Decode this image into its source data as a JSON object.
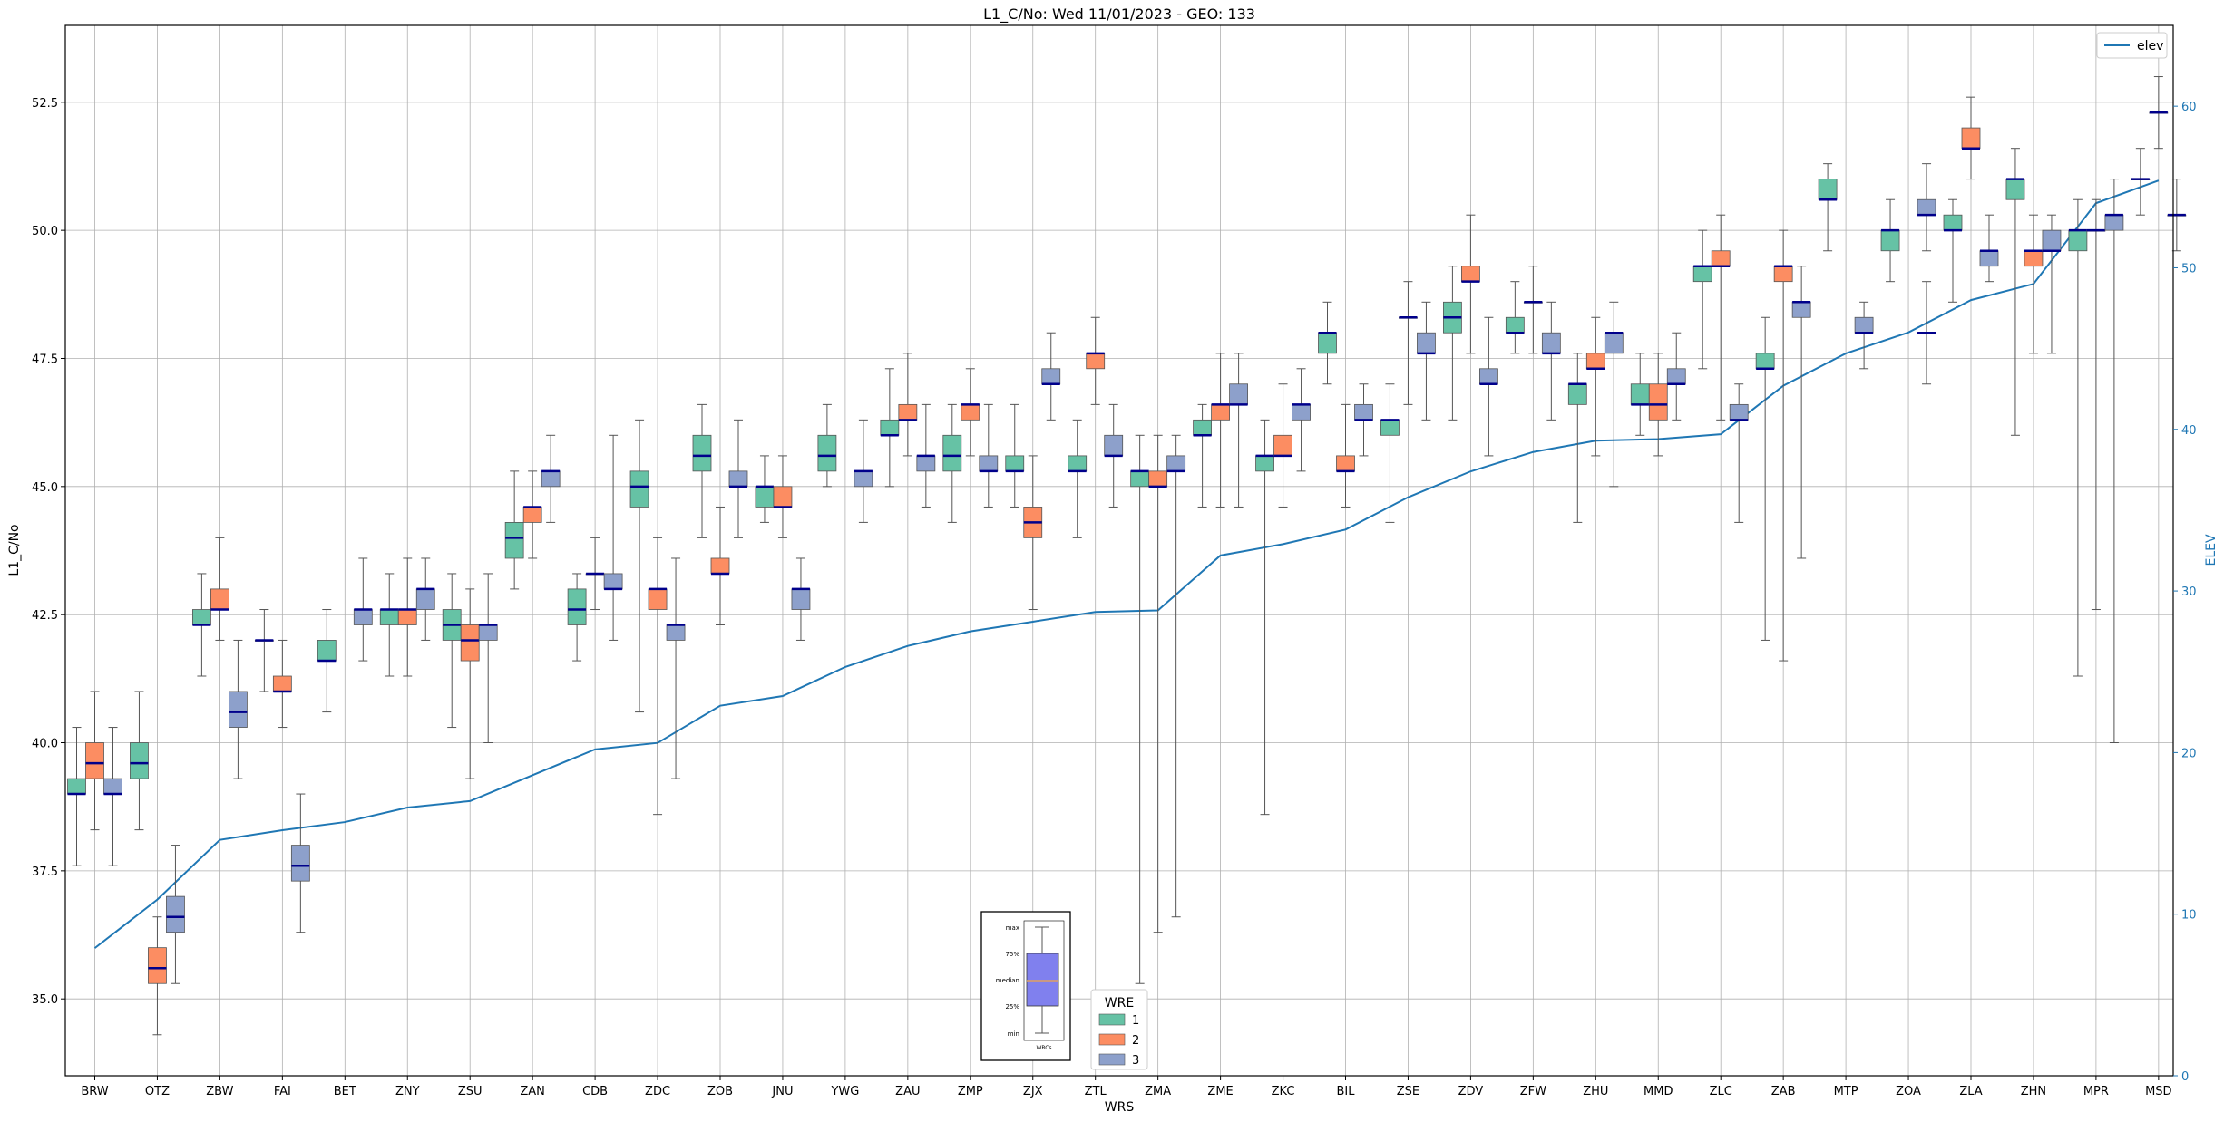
{
  "chart_data": {
    "type": "box",
    "title": "L1_C/No: Wed 11/01/2023 - GEO: 133",
    "xlabel": "WRS",
    "ylabel": "L1_C/No",
    "y2label": "ELEV",
    "ylim": [
      33.5,
      54.0
    ],
    "y2lim": [
      0,
      65
    ],
    "yticks": [
      "35.0",
      "37.5",
      "40.0",
      "42.5",
      "45.0",
      "47.5",
      "50.0",
      "52.5"
    ],
    "y2ticks": [
      "0",
      "10",
      "20",
      "30",
      "40",
      "50",
      "60"
    ],
    "grid": true,
    "colors": {
      "wre1": "#66c2a5",
      "wre2": "#fc8d62",
      "wre3": "#8da0cb",
      "elev": "#1f77b4",
      "median": "#00008b",
      "axis2": "#1f77b4"
    },
    "categories": [
      "BRW",
      "OTZ",
      "ZBW",
      "FAI",
      "BET",
      "ZNY",
      "ZSU",
      "ZAN",
      "CDB",
      "ZDC",
      "ZOB",
      "JNU",
      "YWG",
      "ZAU",
      "ZMP",
      "ZJX",
      "ZTL",
      "ZMA",
      "ZME",
      "ZKC",
      "BIL",
      "ZSE",
      "ZDV",
      "ZFW",
      "ZHU",
      "MMD",
      "ZLC",
      "ZAB",
      "MTP",
      "ZOA",
      "ZLA",
      "ZHN",
      "MPR",
      "MSD"
    ],
    "boxes": [
      {
        "cat": "BRW",
        "wre": 1,
        "stats": [
          37.6,
          39.0,
          39.0,
          39.3,
          40.3
        ]
      },
      {
        "cat": "BRW",
        "wre": 2,
        "stats": [
          38.3,
          39.3,
          39.6,
          40.0,
          41.0
        ]
      },
      {
        "cat": "BRW",
        "wre": 3,
        "stats": [
          37.6,
          39.0,
          39.0,
          39.3,
          40.3
        ]
      },
      {
        "cat": "OTZ",
        "wre": 1,
        "stats": [
          38.3,
          39.3,
          39.6,
          40.0,
          41.0
        ]
      },
      {
        "cat": "OTZ",
        "wre": 2,
        "stats": [
          34.3,
          35.3,
          35.6,
          36.0,
          36.6
        ]
      },
      {
        "cat": "OTZ",
        "wre": 3,
        "stats": [
          35.3,
          36.3,
          36.6,
          37.0,
          38.0
        ]
      },
      {
        "cat": "ZBW",
        "wre": 1,
        "stats": [
          41.3,
          42.3,
          42.3,
          42.6,
          43.3
        ]
      },
      {
        "cat": "ZBW",
        "wre": 2,
        "stats": [
          42.0,
          42.6,
          42.6,
          43.0,
          44.0
        ]
      },
      {
        "cat": "ZBW",
        "wre": 3,
        "stats": [
          39.3,
          40.3,
          40.6,
          41.0,
          42.0
        ]
      },
      {
        "cat": "FAI",
        "wre": 1,
        "stats": [
          41.0,
          42.0,
          42.0,
          42.0,
          42.6
        ]
      },
      {
        "cat": "FAI",
        "wre": 2,
        "stats": [
          40.3,
          41.0,
          41.0,
          41.3,
          42.0
        ]
      },
      {
        "cat": "FAI",
        "wre": 3,
        "stats": [
          36.3,
          37.3,
          37.6,
          38.0,
          39.0
        ]
      },
      {
        "cat": "BET",
        "wre": 1,
        "stats": [
          40.6,
          41.6,
          41.6,
          42.0,
          42.6
        ]
      },
      {
        "cat": "BET",
        "wre": 3,
        "stats": [
          41.6,
          42.3,
          42.6,
          42.6,
          43.6
        ]
      },
      {
        "cat": "ZNY",
        "wre": 1,
        "stats": [
          41.3,
          42.3,
          42.6,
          42.6,
          43.3
        ]
      },
      {
        "cat": "ZNY",
        "wre": 2,
        "stats": [
          41.3,
          42.3,
          42.6,
          42.6,
          43.6
        ]
      },
      {
        "cat": "ZNY",
        "wre": 3,
        "stats": [
          42.0,
          42.6,
          43.0,
          43.0,
          43.6
        ]
      },
      {
        "cat": "ZSU",
        "wre": 1,
        "stats": [
          40.3,
          42.0,
          42.3,
          42.6,
          43.3
        ]
      },
      {
        "cat": "ZSU",
        "wre": 2,
        "stats": [
          39.3,
          41.6,
          42.0,
          42.3,
          43.0
        ]
      },
      {
        "cat": "ZSU",
        "wre": 3,
        "stats": [
          40.0,
          42.0,
          42.3,
          42.3,
          43.3
        ]
      },
      {
        "cat": "ZAN",
        "wre": 1,
        "stats": [
          43.0,
          43.6,
          44.0,
          44.3,
          45.3
        ]
      },
      {
        "cat": "ZAN",
        "wre": 2,
        "stats": [
          43.6,
          44.3,
          44.6,
          44.6,
          45.3
        ]
      },
      {
        "cat": "ZAN",
        "wre": 3,
        "stats": [
          44.3,
          45.0,
          45.3,
          45.3,
          46.0
        ]
      },
      {
        "cat": "CDB",
        "wre": 1,
        "stats": [
          41.6,
          42.3,
          42.6,
          43.0,
          43.3
        ]
      },
      {
        "cat": "CDB",
        "wre": 2,
        "stats": [
          42.6,
          43.3,
          43.3,
          43.3,
          44.0
        ]
      },
      {
        "cat": "CDB",
        "wre": 3,
        "stats": [
          42.0,
          43.0,
          43.0,
          43.3,
          46.0
        ]
      },
      {
        "cat": "ZDC",
        "wre": 1,
        "stats": [
          40.6,
          44.6,
          45.0,
          45.3,
          46.3
        ]
      },
      {
        "cat": "ZDC",
        "wre": 2,
        "stats": [
          38.6,
          42.6,
          43.0,
          43.0,
          44.0
        ]
      },
      {
        "cat": "ZDC",
        "wre": 3,
        "stats": [
          39.3,
          42.0,
          42.3,
          42.3,
          43.6
        ]
      },
      {
        "cat": "ZOB",
        "wre": 1,
        "stats": [
          44.0,
          45.3,
          45.6,
          46.0,
          46.6
        ]
      },
      {
        "cat": "ZOB",
        "wre": 2,
        "stats": [
          42.3,
          43.3,
          43.3,
          43.6,
          44.6
        ]
      },
      {
        "cat": "ZOB",
        "wre": 3,
        "stats": [
          44.0,
          45.0,
          45.0,
          45.3,
          46.3
        ]
      },
      {
        "cat": "JNU",
        "wre": 1,
        "stats": [
          44.3,
          44.6,
          45.0,
          45.0,
          45.6
        ]
      },
      {
        "cat": "JNU",
        "wre": 2,
        "stats": [
          44.0,
          44.6,
          44.6,
          45.0,
          45.6
        ]
      },
      {
        "cat": "JNU",
        "wre": 3,
        "stats": [
          42.0,
          42.6,
          43.0,
          43.0,
          43.6
        ]
      },
      {
        "cat": "YWG",
        "wre": 1,
        "stats": [
          45.0,
          45.3,
          45.6,
          46.0,
          46.6
        ]
      },
      {
        "cat": "YWG",
        "wre": 3,
        "stats": [
          44.3,
          45.0,
          45.3,
          45.3,
          46.3
        ]
      },
      {
        "cat": "ZAU",
        "wre": 1,
        "stats": [
          45.0,
          46.0,
          46.0,
          46.3,
          47.3
        ]
      },
      {
        "cat": "ZAU",
        "wre": 2,
        "stats": [
          45.6,
          46.3,
          46.3,
          46.6,
          47.6
        ]
      },
      {
        "cat": "ZAU",
        "wre": 3,
        "stats": [
          44.6,
          45.3,
          45.6,
          45.6,
          46.6
        ]
      },
      {
        "cat": "ZMP",
        "wre": 1,
        "stats": [
          44.3,
          45.3,
          45.6,
          46.0,
          46.6
        ]
      },
      {
        "cat": "ZMP",
        "wre": 2,
        "stats": [
          45.6,
          46.3,
          46.6,
          46.6,
          47.3
        ]
      },
      {
        "cat": "ZMP",
        "wre": 3,
        "stats": [
          44.6,
          45.3,
          45.3,
          45.6,
          46.6
        ]
      },
      {
        "cat": "ZJX",
        "wre": 1,
        "stats": [
          44.6,
          45.3,
          45.3,
          45.6,
          46.6
        ]
      },
      {
        "cat": "ZJX",
        "wre": 2,
        "stats": [
          42.6,
          44.0,
          44.3,
          44.6,
          45.6
        ]
      },
      {
        "cat": "ZJX",
        "wre": 3,
        "stats": [
          46.3,
          47.0,
          47.0,
          47.3,
          48.0
        ]
      },
      {
        "cat": "ZTL",
        "wre": 1,
        "stats": [
          44.0,
          45.3,
          45.3,
          45.6,
          46.3
        ]
      },
      {
        "cat": "ZTL",
        "wre": 2,
        "stats": [
          46.6,
          47.3,
          47.6,
          47.6,
          48.3
        ]
      },
      {
        "cat": "ZTL",
        "wre": 3,
        "stats": [
          44.6,
          45.6,
          45.6,
          46.0,
          46.6
        ]
      },
      {
        "cat": "ZMA",
        "wre": 1,
        "stats": [
          35.3,
          45.0,
          45.3,
          45.3,
          46.0
        ]
      },
      {
        "cat": "ZMA",
        "wre": 2,
        "stats": [
          36.3,
          45.0,
          45.0,
          45.3,
          46.0
        ]
      },
      {
        "cat": "ZMA",
        "wre": 3,
        "stats": [
          36.6,
          45.3,
          45.3,
          45.6,
          46.0
        ]
      },
      {
        "cat": "ZME",
        "wre": 1,
        "stats": [
          44.6,
          46.0,
          46.0,
          46.3,
          46.6
        ]
      },
      {
        "cat": "ZME",
        "wre": 2,
        "stats": [
          44.6,
          46.3,
          46.6,
          46.6,
          47.6
        ]
      },
      {
        "cat": "ZME",
        "wre": 3,
        "stats": [
          44.6,
          46.6,
          46.6,
          47.0,
          47.6
        ]
      },
      {
        "cat": "ZKC",
        "wre": 1,
        "stats": [
          38.6,
          45.3,
          45.6,
          45.6,
          46.3
        ]
      },
      {
        "cat": "ZKC",
        "wre": 2,
        "stats": [
          44.6,
          45.6,
          45.6,
          46.0,
          47.0
        ]
      },
      {
        "cat": "ZKC",
        "wre": 3,
        "stats": [
          45.3,
          46.3,
          46.6,
          46.6,
          47.3
        ]
      },
      {
        "cat": "BIL",
        "wre": 1,
        "stats": [
          47.0,
          47.6,
          48.0,
          48.0,
          48.6
        ]
      },
      {
        "cat": "BIL",
        "wre": 2,
        "stats": [
          44.6,
          45.3,
          45.3,
          45.6,
          46.6
        ]
      },
      {
        "cat": "BIL",
        "wre": 3,
        "stats": [
          45.6,
          46.3,
          46.3,
          46.6,
          47.0
        ]
      },
      {
        "cat": "ZSE",
        "wre": 1,
        "stats": [
          44.3,
          46.0,
          46.3,
          46.3,
          47.0
        ]
      },
      {
        "cat": "ZSE",
        "wre": 2,
        "stats": [
          46.6,
          48.3,
          48.3,
          48.3,
          49.0
        ]
      },
      {
        "cat": "ZSE",
        "wre": 3,
        "stats": [
          46.3,
          47.6,
          47.6,
          48.0,
          48.6
        ]
      },
      {
        "cat": "ZDV",
        "wre": 1,
        "stats": [
          46.3,
          48.0,
          48.3,
          48.6,
          49.3
        ]
      },
      {
        "cat": "ZDV",
        "wre": 2,
        "stats": [
          47.6,
          49.0,
          49.0,
          49.3,
          50.3
        ]
      },
      {
        "cat": "ZDV",
        "wre": 3,
        "stats": [
          45.6,
          47.0,
          47.0,
          47.3,
          48.3
        ]
      },
      {
        "cat": "ZFW",
        "wre": 1,
        "stats": [
          47.6,
          48.0,
          48.0,
          48.3,
          49.0
        ]
      },
      {
        "cat": "ZFW",
        "wre": 2,
        "stats": [
          47.6,
          48.6,
          48.6,
          48.6,
          49.3
        ]
      },
      {
        "cat": "ZFW",
        "wre": 3,
        "stats": [
          46.3,
          47.6,
          47.6,
          48.0,
          48.6
        ]
      },
      {
        "cat": "ZHU",
        "wre": 1,
        "stats": [
          44.3,
          46.6,
          47.0,
          47.0,
          47.6
        ]
      },
      {
        "cat": "ZHU",
        "wre": 2,
        "stats": [
          45.6,
          47.3,
          47.3,
          47.6,
          48.3
        ]
      },
      {
        "cat": "ZHU",
        "wre": 3,
        "stats": [
          45.0,
          47.6,
          48.0,
          48.0,
          48.6
        ]
      },
      {
        "cat": "MMD",
        "wre": 1,
        "stats": [
          46.0,
          46.6,
          46.6,
          47.0,
          47.6
        ]
      },
      {
        "cat": "MMD",
        "wre": 2,
        "stats": [
          45.6,
          46.3,
          46.6,
          47.0,
          47.6
        ]
      },
      {
        "cat": "MMD",
        "wre": 3,
        "stats": [
          46.3,
          47.0,
          47.0,
          47.3,
          48.0
        ]
      },
      {
        "cat": "ZLC",
        "wre": 1,
        "stats": [
          47.3,
          49.0,
          49.3,
          49.3,
          50.0
        ]
      },
      {
        "cat": "ZLC",
        "wre": 2,
        "stats": [
          46.3,
          49.3,
          49.3,
          49.6,
          50.3
        ]
      },
      {
        "cat": "ZLC",
        "wre": 3,
        "stats": [
          44.3,
          46.3,
          46.3,
          46.6,
          47.0
        ]
      },
      {
        "cat": "ZAB",
        "wre": 1,
        "stats": [
          42.0,
          47.3,
          47.3,
          47.6,
          48.3
        ]
      },
      {
        "cat": "ZAB",
        "wre": 2,
        "stats": [
          41.6,
          49.0,
          49.3,
          49.3,
          50.0
        ]
      },
      {
        "cat": "ZAB",
        "wre": 3,
        "stats": [
          43.6,
          48.3,
          48.6,
          48.6,
          49.3
        ]
      },
      {
        "cat": "MTP",
        "wre": 1,
        "stats": [
          49.6,
          50.6,
          50.6,
          51.0,
          51.3
        ]
      },
      {
        "cat": "MTP",
        "wre": 3,
        "stats": [
          47.3,
          48.0,
          48.0,
          48.3,
          48.6
        ]
      },
      {
        "cat": "ZOA",
        "wre": 1,
        "stats": [
          49.0,
          49.6,
          50.0,
          50.0,
          50.6
        ]
      },
      {
        "cat": "ZOA",
        "wre": 3,
        "stats": [
          47.0,
          48.0,
          48.0,
          48.0,
          49.0
        ]
      },
      {
        "cat": "ZOA",
        "wre": 3,
        "stats": [
          49.6,
          50.3,
          50.3,
          50.6,
          51.3
        ]
      },
      {
        "cat": "ZLA",
        "wre": 1,
        "stats": [
          48.6,
          50.0,
          50.0,
          50.3,
          50.6
        ]
      },
      {
        "cat": "ZLA",
        "wre": 2,
        "stats": [
          51.0,
          51.6,
          51.6,
          52.0,
          52.6
        ]
      },
      {
        "cat": "ZLA",
        "wre": 3,
        "stats": [
          49.0,
          49.3,
          49.6,
          49.6,
          50.3
        ]
      },
      {
        "cat": "ZHN",
        "wre": 1,
        "stats": [
          46.0,
          50.6,
          51.0,
          51.0,
          51.6
        ]
      },
      {
        "cat": "ZHN",
        "wre": 2,
        "stats": [
          47.6,
          49.3,
          49.6,
          49.6,
          50.3
        ]
      },
      {
        "cat": "ZHN",
        "wre": 3,
        "stats": [
          47.6,
          49.6,
          49.6,
          50.0,
          50.3
        ]
      },
      {
        "cat": "MPR",
        "wre": 1,
        "stats": [
          41.3,
          49.6,
          50.0,
          50.0,
          50.6
        ]
      },
      {
        "cat": "MPR",
        "wre": 2,
        "stats": [
          42.6,
          50.0,
          50.0,
          50.0,
          50.6
        ]
      },
      {
        "cat": "MPR",
        "wre": 3,
        "stats": [
          40.0,
          50.0,
          50.3,
          50.3,
          51.0
        ]
      },
      {
        "cat": "MSD",
        "wre": 2,
        "stats": [
          51.6,
          52.3,
          52.3,
          52.3,
          53.0
        ]
      },
      {
        "cat": "MSD",
        "wre": 3,
        "stats": [
          49.6,
          50.3,
          50.3,
          50.3,
          51.0
        ]
      },
      {
        "cat": "MSD",
        "wre": 1,
        "stats": [
          50.3,
          51.0,
          51.0,
          51.0,
          51.6
        ]
      }
    ],
    "elev_series": {
      "name": "elev",
      "values": [
        7.9,
        10.9,
        14.6,
        15.2,
        15.7,
        16.6,
        17.0,
        18.6,
        20.2,
        20.6,
        22.9,
        23.5,
        25.3,
        26.6,
        27.5,
        28.1,
        28.7,
        28.8,
        32.2,
        32.9,
        33.8,
        35.8,
        37.4,
        38.6,
        39.3,
        39.4,
        39.7,
        42.7,
        44.7,
        46.0,
        48.0,
        49.0,
        54.0,
        55.4
      ]
    },
    "legends": {
      "line": {
        "entries": [
          "elev"
        ],
        "placement": "top-right"
      },
      "wre": {
        "title": "WRE",
        "entries": [
          "1",
          "2",
          "3"
        ],
        "placement": "bottom-center"
      }
    },
    "explainer": {
      "labels": [
        "max",
        "75%",
        "median",
        "25%",
        "min"
      ],
      "xlabel": "WRCs"
    }
  }
}
